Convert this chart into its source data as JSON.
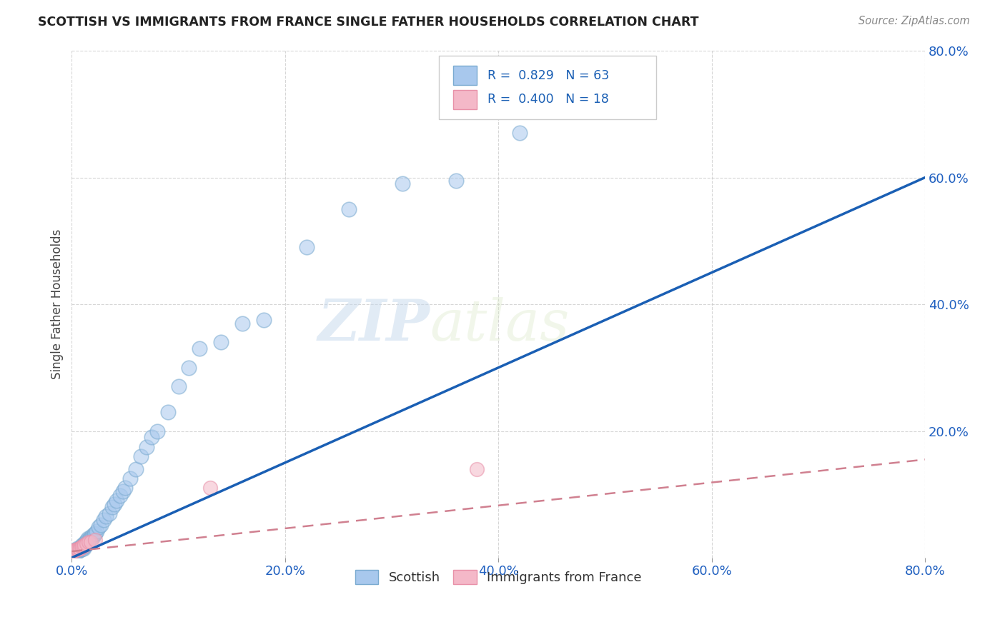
{
  "title": "SCOTTISH VS IMMIGRANTS FROM FRANCE SINGLE FATHER HOUSEHOLDS CORRELATION CHART",
  "source": "Source: ZipAtlas.com",
  "ylabel": "Single Father Households",
  "xlim": [
    0.0,
    0.8
  ],
  "ylim": [
    0.0,
    0.8
  ],
  "xtick_labels": [
    "0.0%",
    "20.0%",
    "40.0%",
    "60.0%",
    "80.0%"
  ],
  "xtick_positions": [
    0.0,
    0.2,
    0.4,
    0.6,
    0.8
  ],
  "ytick_labels": [
    "20.0%",
    "40.0%",
    "60.0%",
    "80.0%"
  ],
  "ytick_positions": [
    0.2,
    0.4,
    0.6,
    0.8
  ],
  "scottish_color": "#a8c8ed",
  "france_color": "#f4b8c8",
  "scottish_edge": "#7aaad0",
  "france_edge": "#e890a8",
  "regression_blue": "#1a5fb4",
  "regression_pink": "#d08090",
  "legend_R_scottish": "0.829",
  "legend_N_scottish": "63",
  "legend_R_france": "0.400",
  "legend_N_france": "18",
  "watermark_zip": "ZIP",
  "watermark_atlas": "atlas",
  "scottish_x": [
    0.002,
    0.003,
    0.004,
    0.005,
    0.005,
    0.006,
    0.006,
    0.007,
    0.007,
    0.008,
    0.008,
    0.009,
    0.009,
    0.01,
    0.01,
    0.01,
    0.011,
    0.011,
    0.012,
    0.012,
    0.013,
    0.013,
    0.014,
    0.014,
    0.015,
    0.015,
    0.016,
    0.017,
    0.018,
    0.019,
    0.02,
    0.021,
    0.022,
    0.023,
    0.025,
    0.027,
    0.03,
    0.032,
    0.035,
    0.038,
    0.04,
    0.042,
    0.045,
    0.048,
    0.05,
    0.055,
    0.06,
    0.065,
    0.07,
    0.075,
    0.08,
    0.09,
    0.1,
    0.11,
    0.12,
    0.14,
    0.16,
    0.18,
    0.22,
    0.26,
    0.31,
    0.36,
    0.42
  ],
  "scottish_y": [
    0.01,
    0.01,
    0.012,
    0.01,
    0.015,
    0.01,
    0.012,
    0.013,
    0.015,
    0.012,
    0.015,
    0.013,
    0.018,
    0.015,
    0.018,
    0.02,
    0.015,
    0.02,
    0.018,
    0.022,
    0.02,
    0.025,
    0.022,
    0.027,
    0.025,
    0.03,
    0.028,
    0.032,
    0.03,
    0.035,
    0.033,
    0.037,
    0.038,
    0.042,
    0.048,
    0.052,
    0.06,
    0.065,
    0.07,
    0.08,
    0.085,
    0.09,
    0.098,
    0.105,
    0.11,
    0.125,
    0.14,
    0.16,
    0.175,
    0.19,
    0.2,
    0.23,
    0.27,
    0.3,
    0.33,
    0.34,
    0.37,
    0.375,
    0.49,
    0.55,
    0.59,
    0.595,
    0.67
  ],
  "france_x": [
    0.001,
    0.002,
    0.003,
    0.004,
    0.005,
    0.006,
    0.007,
    0.008,
    0.009,
    0.01,
    0.011,
    0.012,
    0.014,
    0.016,
    0.018,
    0.022,
    0.13,
    0.38
  ],
  "france_y": [
    0.01,
    0.01,
    0.012,
    0.012,
    0.013,
    0.013,
    0.015,
    0.015,
    0.017,
    0.018,
    0.018,
    0.02,
    0.022,
    0.025,
    0.025,
    0.028,
    0.11,
    0.14
  ],
  "regression_blue_x0": 0.0,
  "regression_blue_y0": 0.0,
  "regression_blue_x1": 0.8,
  "regression_blue_y1": 0.6,
  "regression_pink_x0": 0.0,
  "regression_pink_y0": 0.01,
  "regression_pink_x1": 0.8,
  "regression_pink_y1": 0.155
}
